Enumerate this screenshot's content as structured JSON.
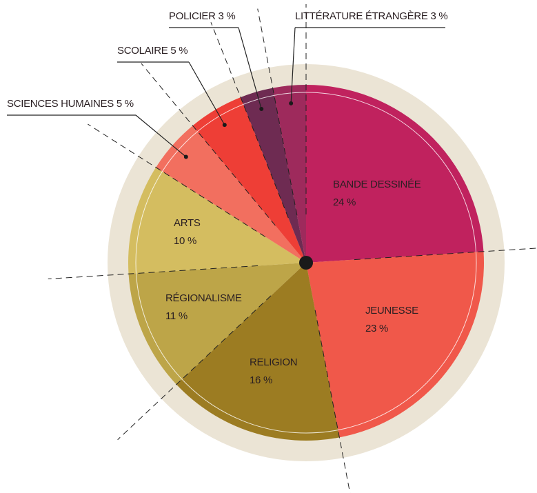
{
  "chart_data": {
    "type": "pie",
    "categories": [
      "BANDE DESSINÉE",
      "JEUNESSE",
      "RELIGION",
      "RÉGIONALISME",
      "ARTS",
      "SCIENCES HUMAINES",
      "SCOLAIRE",
      "POLICIER",
      "LITTÉRATURE ÉTRANGÈRE"
    ],
    "values": [
      24,
      23,
      16,
      11,
      10,
      5,
      5,
      3,
      3
    ],
    "value_labels": [
      "24 %",
      "23 %",
      "16 %",
      "11 %",
      "10 %",
      "5 %",
      "5 %",
      "3 %",
      "3 %"
    ],
    "colors": [
      "#c0225e",
      "#f0584a",
      "#9c7c22",
      "#bda548",
      "#d4bd60",
      "#f26f5f",
      "#ee3e36",
      "#6e2b52",
      "#9e2a5c"
    ]
  }
}
